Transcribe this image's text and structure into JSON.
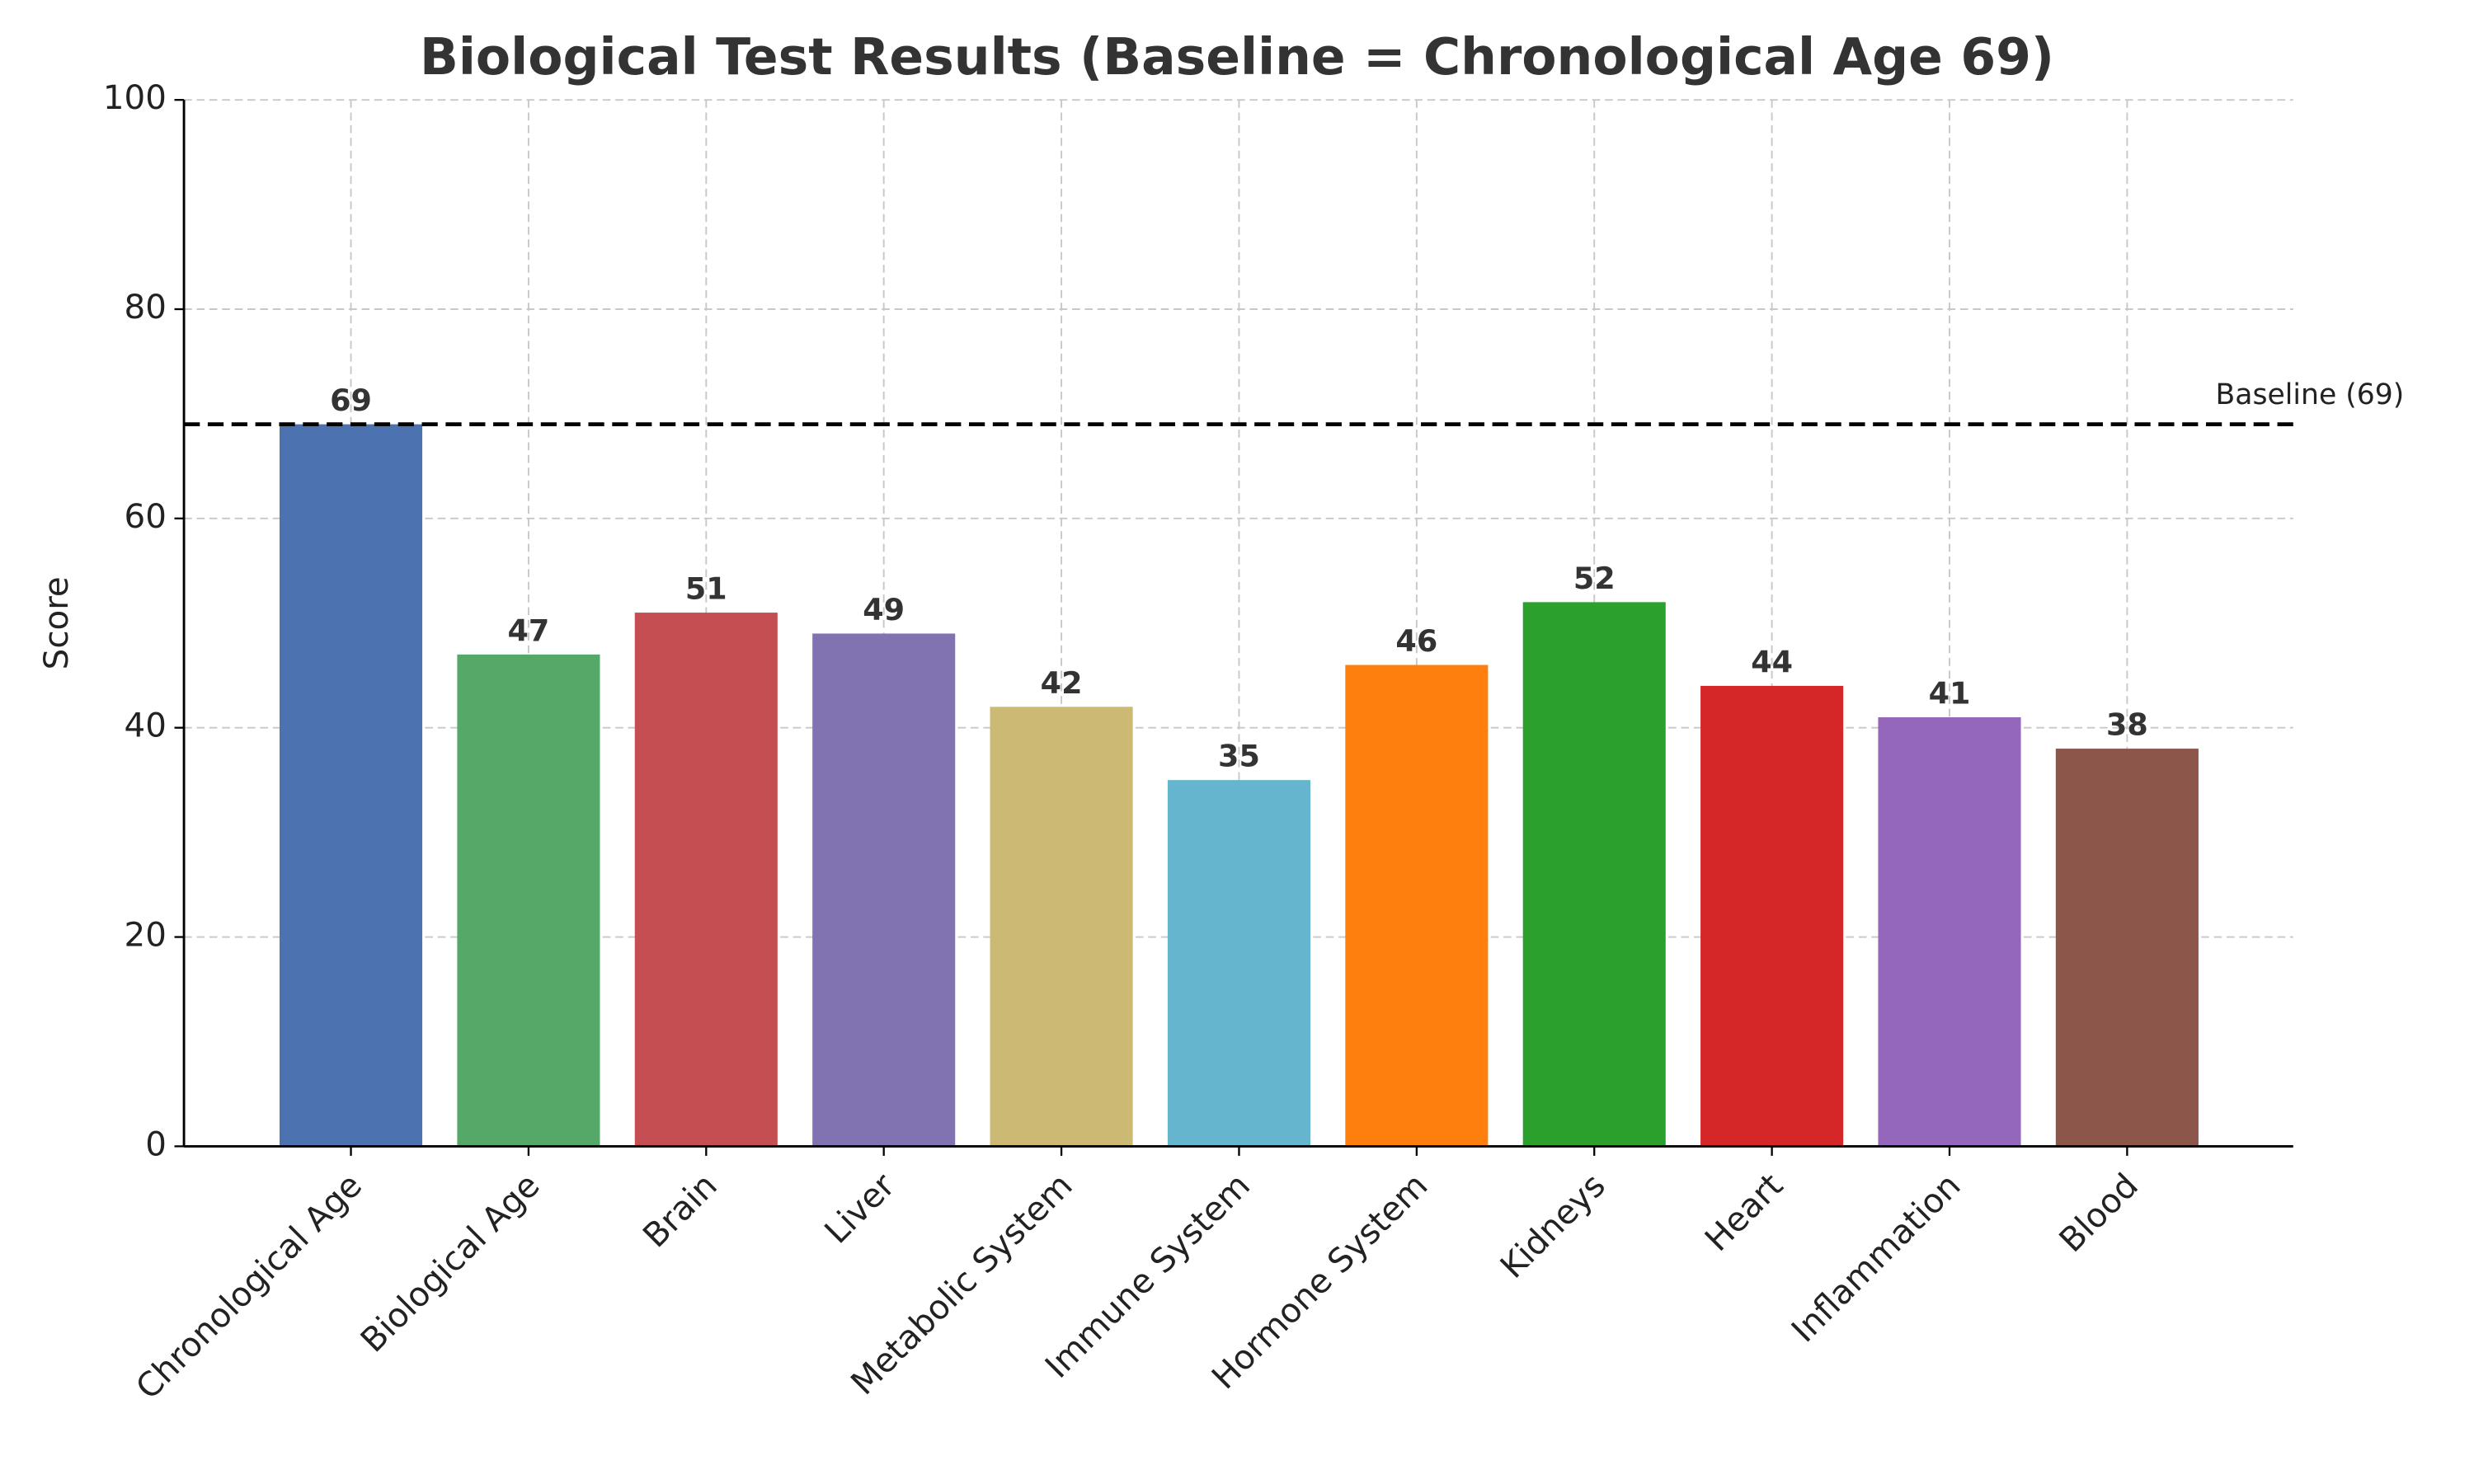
{
  "chart_data": {
    "type": "bar",
    "title": "Biological Test Results (Baseline = Chronological Age 69)",
    "y_label": "Score",
    "categories": [
      "Chronological Age",
      "Biological Age",
      "Brain",
      "Liver",
      "Metabolic System",
      "Immune System",
      "Hormone System",
      "Kidneys",
      "Heart",
      "Inflammation",
      "Blood"
    ],
    "values": [
      69,
      47,
      51,
      49,
      42,
      35,
      46,
      52,
      44,
      41,
      38
    ],
    "colors": [
      "#4c72b0",
      "#55a868",
      "#c44e52",
      "#8172b2",
      "#ccb974",
      "#64b5cd",
      "#ff7f0e",
      "#2ca02c",
      "#d62728",
      "#9467bd",
      "#8c564b"
    ],
    "ylim": [
      0,
      100
    ],
    "yticks": [
      0,
      20,
      40,
      60,
      80,
      100
    ],
    "grid": true,
    "baseline": 69,
    "baseline_label": "Baseline (69)"
  }
}
